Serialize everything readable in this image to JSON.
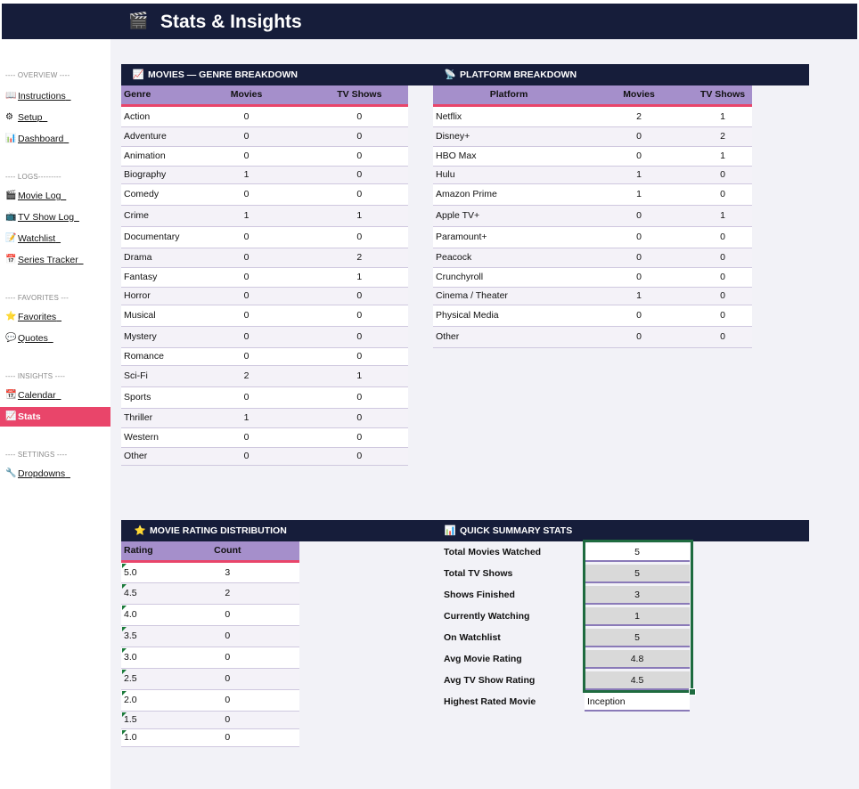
{
  "header": {
    "title": "Stats & Insights",
    "icon": "clapperboard-icon"
  },
  "sidebar": {
    "sections": [
      {
        "heading": "---- OVERVIEW ----"
      },
      {
        "heading": "---- LOGS---------"
      },
      {
        "heading": "---- FAVORITES ---"
      },
      {
        "heading": "---- INSIGHTS ----"
      },
      {
        "heading": "---- SETTINGS ----"
      }
    ],
    "items": [
      {
        "label": "Instructions",
        "icon": "notebook-icon",
        "glyph": "📖"
      },
      {
        "label": "Setup",
        "icon": "gear-icon",
        "glyph": "⚙"
      },
      {
        "label": "Dashboard",
        "icon": "bar-chart-icon",
        "glyph": "📊"
      },
      {
        "label": "Movie Log",
        "icon": "clapperboard-icon",
        "glyph": "🎬"
      },
      {
        "label": "TV Show Log",
        "icon": "tv-icon",
        "glyph": "📺"
      },
      {
        "label": "Watchlist",
        "icon": "pencil-icon",
        "glyph": "📝"
      },
      {
        "label": "Series Tracker",
        "icon": "calendar-icon",
        "glyph": "📅"
      },
      {
        "label": "Favorites",
        "icon": "star-icon",
        "glyph": "⭐"
      },
      {
        "label": "Quotes",
        "icon": "speech-bubble-icon",
        "glyph": "💬"
      },
      {
        "label": "Calendar",
        "icon": "calendar-icon",
        "glyph": "📆"
      },
      {
        "label": "Stats",
        "icon": "chart-icon",
        "glyph": "📈",
        "active": true
      },
      {
        "label": "Dropdowns",
        "icon": "wrench-icon",
        "glyph": "🔧"
      }
    ]
  },
  "genre": {
    "title": "MOVIES — GENRE BREAKDOWN",
    "icon": "chart-icon",
    "columns": [
      "Genre",
      "Movies",
      "TV Shows"
    ],
    "rows": [
      [
        "Action",
        "0",
        "0"
      ],
      [
        "Adventure",
        "0",
        "0"
      ],
      [
        "Animation",
        "0",
        "0"
      ],
      [
        "Biography",
        "1",
        "0"
      ],
      [
        "Comedy",
        "0",
        "0"
      ],
      [
        "Crime",
        "1",
        "1"
      ],
      [
        "Documentary",
        "0",
        "0"
      ],
      [
        "Drama",
        "0",
        "2"
      ],
      [
        "Fantasy",
        "0",
        "1"
      ],
      [
        "Horror",
        "0",
        "0"
      ],
      [
        "Musical",
        "0",
        "0"
      ],
      [
        "Mystery",
        "0",
        "0"
      ],
      [
        "Romance",
        "0",
        "0"
      ],
      [
        "Sci-Fi",
        "2",
        "1"
      ],
      [
        "Sports",
        "0",
        "0"
      ],
      [
        "Thriller",
        "1",
        "0"
      ],
      [
        "Western",
        "0",
        "0"
      ],
      [
        "Other",
        "0",
        "0"
      ]
    ]
  },
  "platform": {
    "title": "PLATFORM BREAKDOWN",
    "icon": "satellite-icon",
    "columns": [
      "Platform",
      "Movies",
      "TV Shows"
    ],
    "rows": [
      [
        "Netflix",
        "2",
        "1"
      ],
      [
        "Disney+",
        "0",
        "2"
      ],
      [
        "HBO Max",
        "0",
        "1"
      ],
      [
        "Hulu",
        "1",
        "0"
      ],
      [
        "Amazon Prime",
        "1",
        "0"
      ],
      [
        "Apple TV+",
        "0",
        "1"
      ],
      [
        "Paramount+",
        "0",
        "0"
      ],
      [
        "Peacock",
        "0",
        "0"
      ],
      [
        "Crunchyroll",
        "0",
        "0"
      ],
      [
        "Cinema / Theater",
        "1",
        "0"
      ],
      [
        "Physical Media",
        "0",
        "0"
      ],
      [
        "Other",
        "0",
        "0"
      ]
    ]
  },
  "ratings": {
    "title": "MOVIE RATING DISTRIBUTION",
    "icon": "star-icon",
    "columns": [
      "Rating",
      "Count"
    ],
    "rows": [
      [
        "5.0",
        "3"
      ],
      [
        "4.5",
        "2"
      ],
      [
        "4.0",
        "0"
      ],
      [
        "3.5",
        "0"
      ],
      [
        "3.0",
        "0"
      ],
      [
        "2.5",
        "0"
      ],
      [
        "2.0",
        "0"
      ],
      [
        "1.5",
        "0"
      ],
      [
        "1.0",
        "0"
      ]
    ]
  },
  "summary": {
    "title": "QUICK SUMMARY STATS",
    "icon": "bar-chart-icon",
    "rows": [
      {
        "label": "Total Movies Watched",
        "value": "5"
      },
      {
        "label": "Total TV Shows",
        "value": "5"
      },
      {
        "label": "Shows Finished",
        "value": "3"
      },
      {
        "label": "Currently Watching",
        "value": "1"
      },
      {
        "label": "On Watchlist",
        "value": "5"
      },
      {
        "label": "Avg Movie Rating",
        "value": "4.8"
      },
      {
        "label": "Avg TV Show Rating",
        "value": "4.5"
      },
      {
        "label": "Highest Rated Movie",
        "value": "Inception"
      }
    ]
  },
  "colors": {
    "header_bg": "#161d3a",
    "column_header_bg": "#a58fcb",
    "accent": "#e9456a",
    "selection": "#1e6b3f"
  }
}
